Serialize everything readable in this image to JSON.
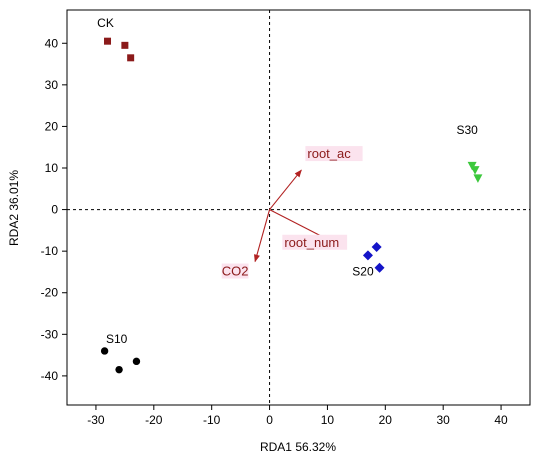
{
  "chart_data": {
    "type": "scatter",
    "xlabel": "RDA1 56.32%",
    "ylabel": "RDA2  36.01%",
    "xlim": [
      -35,
      45
    ],
    "ylim": [
      -47,
      48
    ],
    "xticks": [
      -30,
      -20,
      -10,
      0,
      10,
      20,
      30,
      40
    ],
    "yticks": [
      -40,
      -30,
      -20,
      -10,
      0,
      10,
      20,
      30,
      40
    ],
    "xtick_labels": [
      "-30",
      "-20",
      "-10",
      "0",
      "10",
      "20",
      "30",
      "40"
    ],
    "ytick_labels": [
      "-40",
      "-30",
      "-20",
      "-10",
      "0",
      "10",
      "20",
      "30",
      "40"
    ],
    "grid": false,
    "reference_lines": {
      "x": 0,
      "y": 0,
      "style": "dashed"
    },
    "groups": [
      {
        "name": "CK",
        "marker": "square",
        "color": "#8b1a1a",
        "points": [
          {
            "x": -28,
            "y": 40.5
          },
          {
            "x": -25,
            "y": 39.5
          },
          {
            "x": -24,
            "y": 36.5
          }
        ]
      },
      {
        "name": "S10",
        "marker": "circle",
        "color": "#000000",
        "points": [
          {
            "x": -28.5,
            "y": -34
          },
          {
            "x": -26,
            "y": -38.5
          },
          {
            "x": -23,
            "y": -36.5
          }
        ]
      },
      {
        "name": "S20",
        "marker": "diamond",
        "color": "#1414c8",
        "points": [
          {
            "x": 17,
            "y": -11
          },
          {
            "x": 18.5,
            "y": -9
          },
          {
            "x": 19,
            "y": -14
          }
        ]
      },
      {
        "name": "S30",
        "marker": "triangle-down",
        "color": "#3cc83c",
        "points": [
          {
            "x": 35,
            "y": 10.5
          },
          {
            "x": 35.5,
            "y": 9.5
          },
          {
            "x": 36,
            "y": 7.5
          }
        ]
      }
    ],
    "arrows": [
      {
        "label": "root_ac",
        "x": 5.5,
        "y": 9.5
      },
      {
        "label": "root_num",
        "x": 10.5,
        "y": -7.5
      },
      {
        "label": "CO2",
        "x": -2.5,
        "y": -12.5
      }
    ],
    "colors": {
      "arrow": "#b22222",
      "arrow_label": "#8b1a1a",
      "axis": "#000000",
      "label_highlight": "#fbe3ee"
    }
  }
}
